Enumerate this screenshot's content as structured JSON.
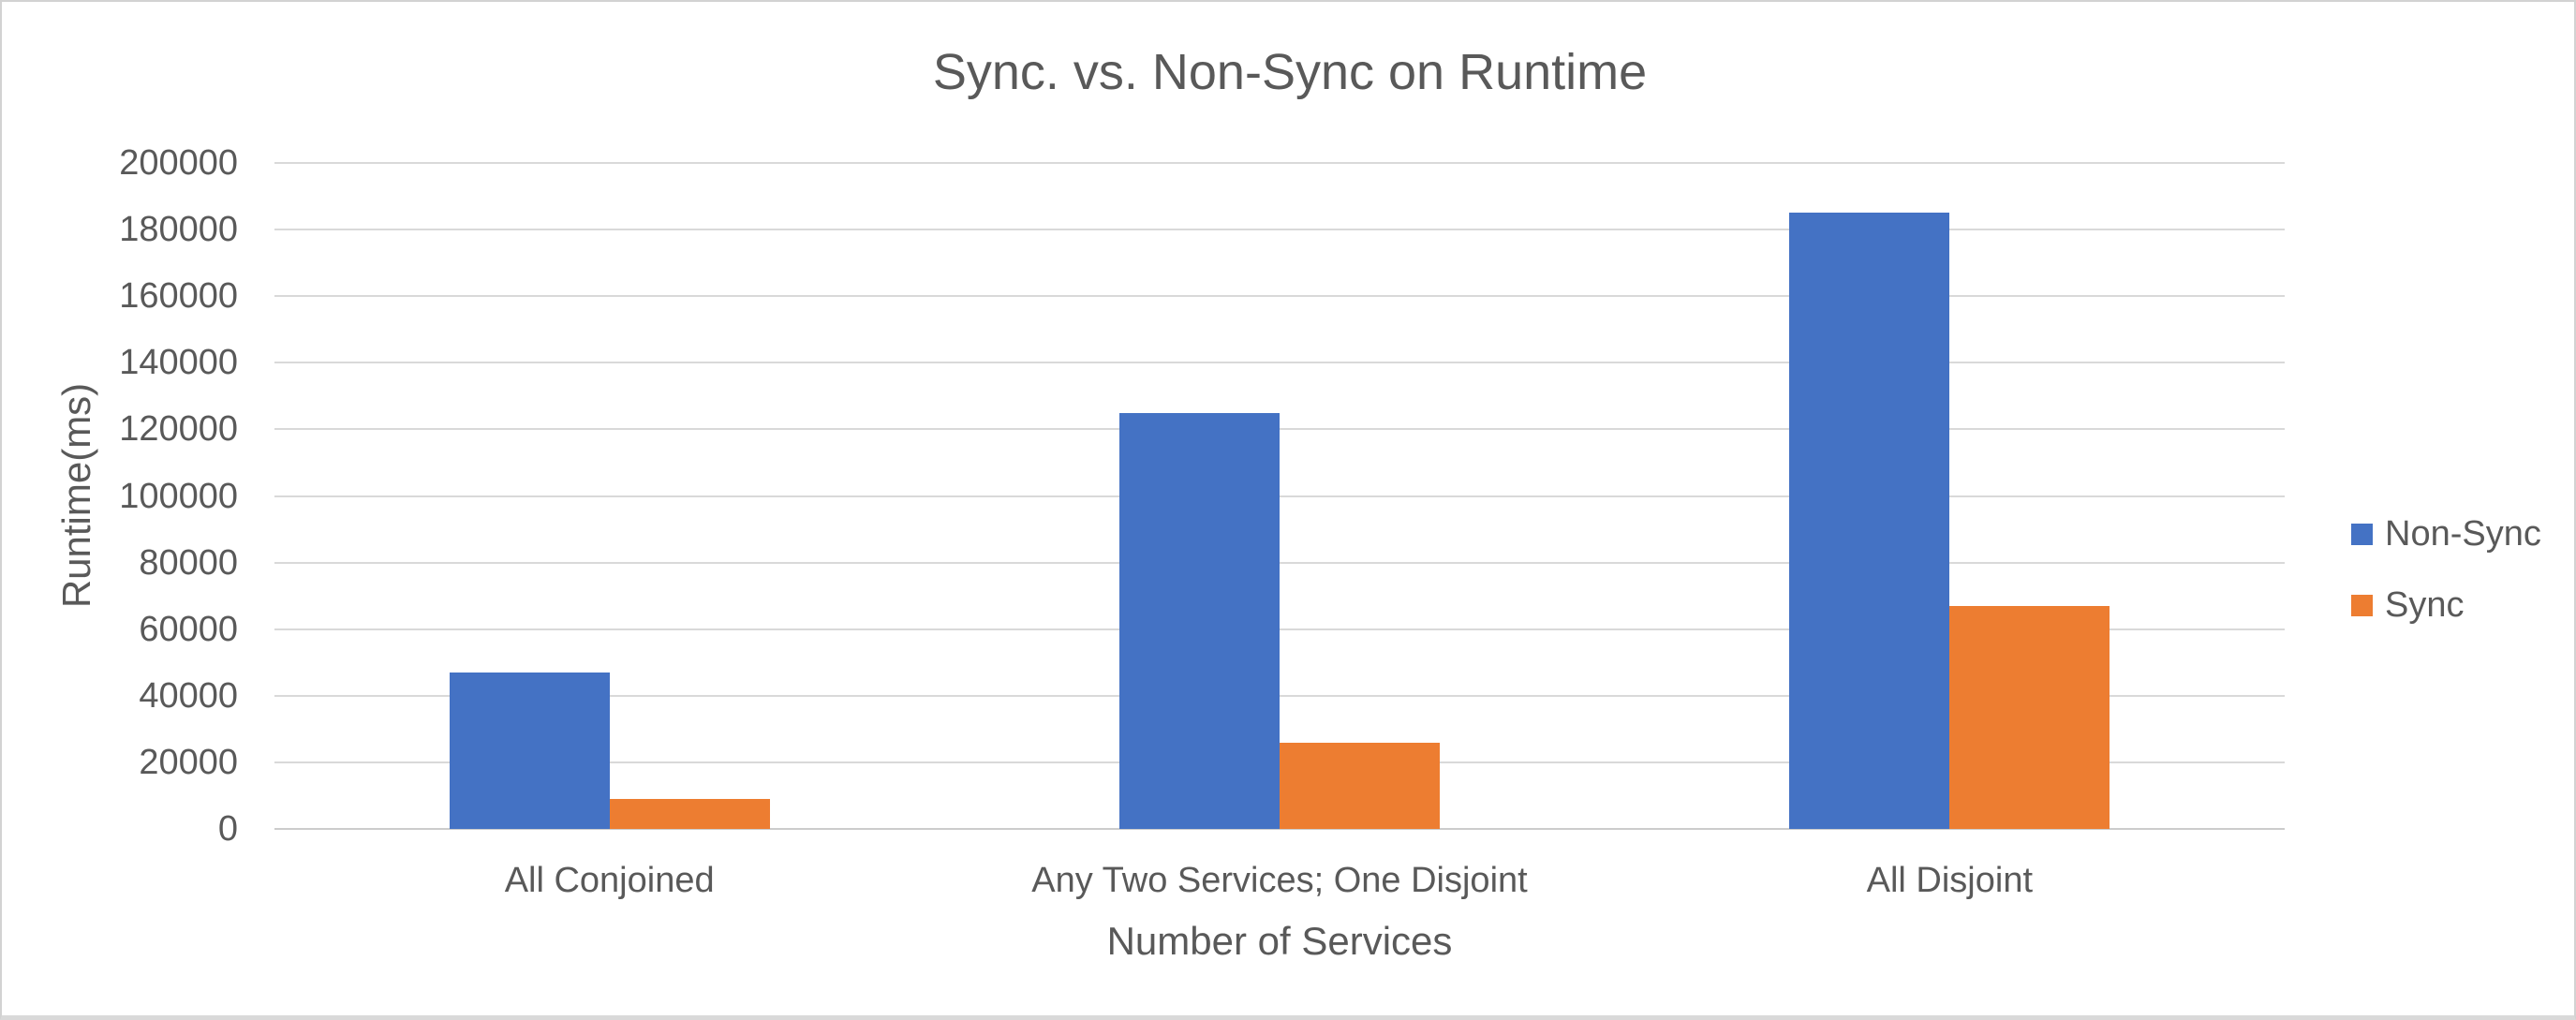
{
  "chart_data": {
    "type": "bar",
    "title": "Sync. vs. Non-Sync on Runtime",
    "xlabel": "Number of Services",
    "ylabel": "Runtime(ms)",
    "categories": [
      "All Conjoined",
      "Any Two Services; One Disjoint",
      "All Disjoint"
    ],
    "series": [
      {
        "name": "Non-Sync",
        "color": "#4472C4",
        "values": [
          47000,
          125000,
          185000
        ]
      },
      {
        "name": "Sync",
        "color": "#ED7D31",
        "values": [
          9000,
          26000,
          67000
        ]
      }
    ],
    "ylim": [
      0,
      200000
    ],
    "yticks": [
      0,
      20000,
      40000,
      60000,
      80000,
      100000,
      120000,
      140000,
      160000,
      180000,
      200000
    ],
    "grid": "horizontal",
    "legend_position": "right",
    "colors": {
      "text": "#595959",
      "gridline": "#d9d9d9",
      "axis_line": "#cccccc"
    }
  }
}
